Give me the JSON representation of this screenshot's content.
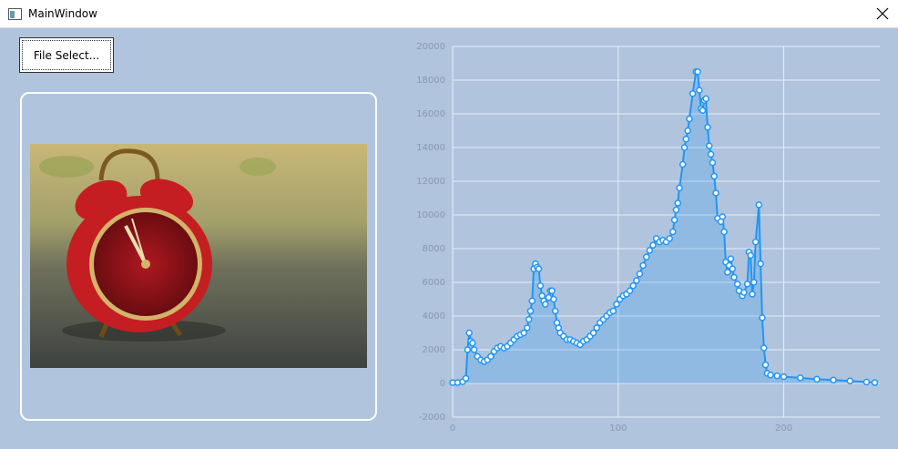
{
  "window": {
    "title": "MainWindow"
  },
  "button": {
    "label": "File Select..."
  },
  "chart_data": {
    "type": "area",
    "x": [
      0,
      3,
      6,
      8,
      9,
      10,
      11,
      12,
      13,
      15,
      17,
      19,
      21,
      23,
      25,
      27,
      29,
      31,
      33,
      35,
      37,
      39,
      41,
      43,
      45,
      46,
      47,
      48,
      49,
      50,
      51,
      52,
      53,
      54,
      55,
      56,
      58,
      59,
      60,
      61,
      62,
      63,
      64,
      65,
      67,
      69,
      71,
      73,
      75,
      77,
      79,
      81,
      83,
      85,
      87,
      89,
      91,
      93,
      95,
      97,
      99,
      101,
      103,
      105,
      107,
      109,
      111,
      113,
      115,
      117,
      119,
      121,
      123,
      125,
      127,
      129,
      131,
      133,
      134,
      135,
      136,
      137,
      139,
      140,
      141,
      142,
      143,
      145,
      147,
      148,
      149,
      150,
      151,
      152,
      153,
      154,
      155,
      156,
      157,
      158,
      159,
      160,
      162,
      163,
      164,
      165,
      166,
      167,
      168,
      169,
      170,
      172,
      173,
      175,
      176,
      178,
      179,
      180,
      181,
      182,
      183,
      185,
      186,
      187,
      188,
      189,
      190,
      192,
      196,
      200,
      210,
      220,
      230,
      240,
      250,
      255
    ],
    "values": [
      50,
      50,
      100,
      300,
      2000,
      3000,
      2500,
      2400,
      2000,
      1600,
      1400,
      1300,
      1400,
      1600,
      1900,
      2100,
      2200,
      2100,
      2200,
      2400,
      2600,
      2800,
      2900,
      3000,
      3300,
      3800,
      4300,
      4900,
      6800,
      7100,
      6900,
      6800,
      5800,
      5200,
      4900,
      4700,
      5100,
      5500,
      5500,
      5000,
      4300,
      3600,
      3300,
      3000,
      2800,
      2600,
      2600,
      2500,
      2400,
      2300,
      2500,
      2600,
      2800,
      3000,
      3300,
      3600,
      3800,
      4000,
      4200,
      4300,
      4700,
      5000,
      5200,
      5300,
      5500,
      5800,
      6100,
      6500,
      7000,
      7500,
      7900,
      8200,
      8600,
      8400,
      8500,
      8400,
      8600,
      9000,
      9700,
      10300,
      10700,
      11600,
      13000,
      14000,
      14500,
      15000,
      15700,
      17200,
      18500,
      18500,
      17400,
      16300,
      16200,
      16800,
      16900,
      15200,
      14100,
      13600,
      13100,
      12300,
      11300,
      9800,
      9600,
      9900,
      9000,
      7200,
      6600,
      7000,
      7400,
      6800,
      6300,
      5900,
      5500,
      5200,
      5400,
      5900,
      7800,
      7600,
      5300,
      6000,
      8400,
      10600,
      7100,
      3900,
      2100,
      1100,
      600,
      500,
      450,
      400,
      330,
      250,
      200,
      150,
      80,
      50
    ],
    "color": "#2196f3",
    "xlim": [
      0,
      258
    ],
    "xticks": [
      0,
      100,
      200
    ],
    "ylim": [
      -2000,
      20000
    ],
    "yticks": [
      -2000,
      0,
      2000,
      4000,
      6000,
      8000,
      10000,
      12000,
      14000,
      16000,
      18000,
      20000
    ],
    "grid": true
  }
}
